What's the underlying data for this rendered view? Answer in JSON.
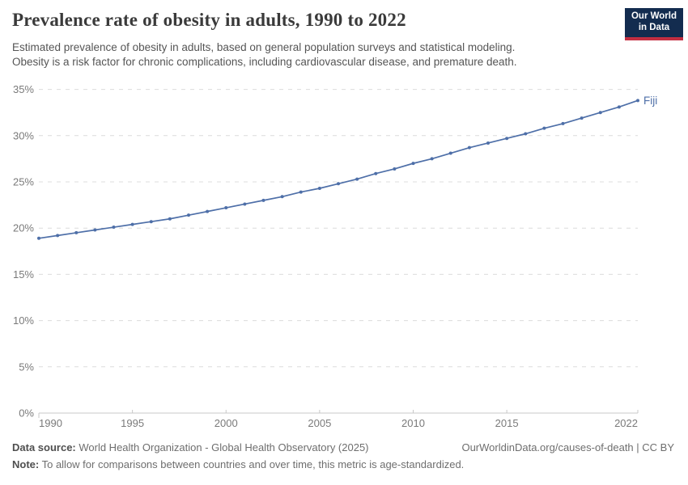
{
  "header": {
    "title": "Prevalence rate of obesity in adults, 1990 to 2022",
    "subtitle_lines": [
      "Estimated prevalence of obesity in adults, based on general population surveys and statistical modeling.",
      "Obesity is a risk factor for chronic complications, including cardiovascular disease, and premature death."
    ]
  },
  "logo": {
    "line1": "Our World",
    "line2": "in Data",
    "bg_color": "#132c4f",
    "stripe_color": "#c32e41"
  },
  "chart_data": {
    "type": "line",
    "title": "Prevalence rate of obesity in adults, 1990 to 2022",
    "xlabel": "",
    "ylabel": "",
    "xlim": [
      1990,
      2022
    ],
    "ylim": [
      0,
      35
    ],
    "grid": "horizontal-dashed",
    "legend": "end-of-line-label",
    "x_tick_years": [
      1990,
      1995,
      2000,
      2005,
      2010,
      2015,
      2022
    ],
    "y_ticks": {
      "values": [
        0,
        5,
        10,
        15,
        20,
        25,
        30,
        35
      ],
      "labels": [
        "0%",
        "5%",
        "10%",
        "15%",
        "20%",
        "25%",
        "30%",
        "35%"
      ]
    },
    "series": [
      {
        "name": "Fiji",
        "color": "#4e6fa8",
        "x": [
          1990,
          1991,
          1992,
          1993,
          1994,
          1995,
          1996,
          1997,
          1998,
          1999,
          2000,
          2001,
          2002,
          2003,
          2004,
          2005,
          2006,
          2007,
          2008,
          2009,
          2010,
          2011,
          2012,
          2013,
          2014,
          2015,
          2016,
          2017,
          2018,
          2019,
          2020,
          2021,
          2022
        ],
        "values": [
          18.9,
          19.2,
          19.5,
          19.8,
          20.1,
          20.4,
          20.7,
          21.0,
          21.4,
          21.8,
          22.2,
          22.6,
          23.0,
          23.4,
          23.9,
          24.3,
          24.8,
          25.3,
          25.9,
          26.4,
          27.0,
          27.5,
          28.1,
          28.7,
          29.2,
          29.7,
          30.2,
          30.8,
          31.3,
          31.9,
          32.5,
          33.1,
          33.8
        ]
      }
    ],
    "colors": {
      "gridline": "#dcdcdc",
      "axis_line": "#c8c8c8",
      "tick_label": "#7a7a7a"
    }
  },
  "footer": {
    "data_source_label": "Data source:",
    "data_source_text": " World Health Organization - Global Health Observatory (2025)",
    "rights": "OurWorldinData.org/causes-of-death | CC BY",
    "note_label": "Note:",
    "note_text": " To allow for comparisons between countries and over time, this metric is age-standardized."
  }
}
